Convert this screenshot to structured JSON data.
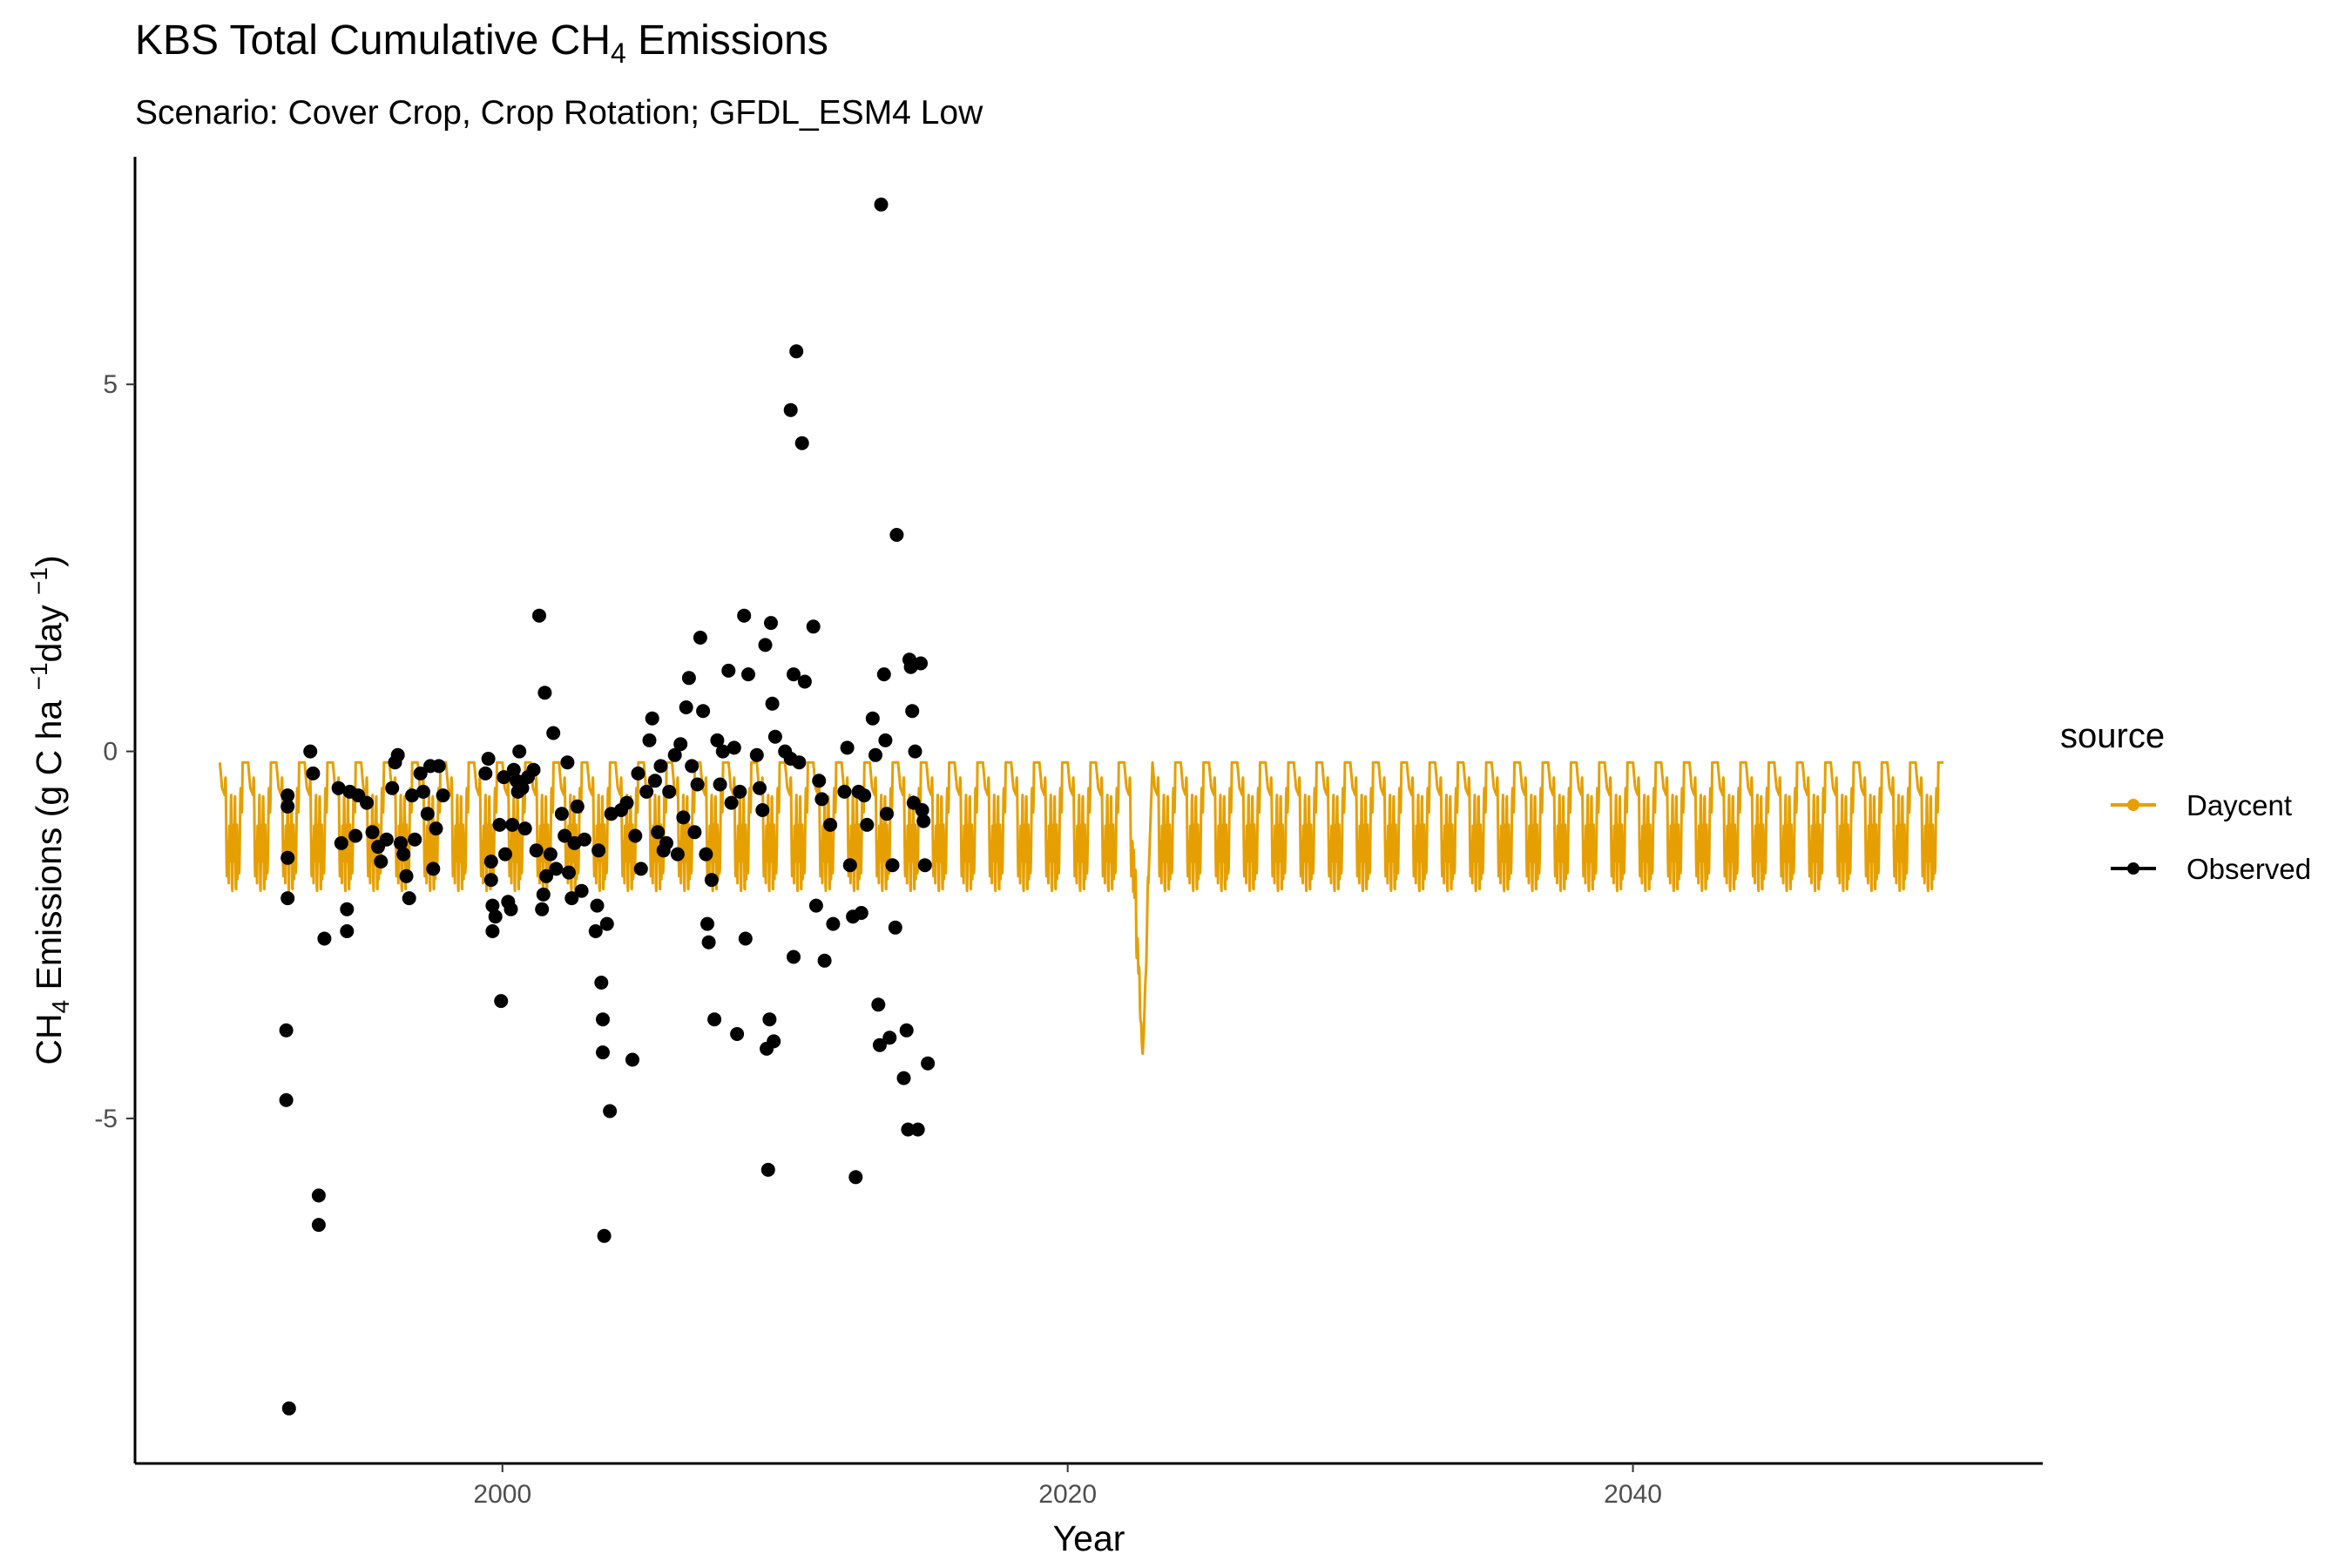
{
  "chart_data": {
    "type": "line",
    "title": {
      "prefix": "KBS Total Cumulative CH",
      "sub": "4",
      "suffix": " Emissions"
    },
    "subtitle": "Scenario: Cover Crop, Crop Rotation; GFDL_ESM4 Low",
    "xlabel": "Year",
    "ylabel": {
      "part1": "CH",
      "sub": "4",
      "part2": " Emissions (g C ha ",
      "sup1": "−1",
      "part3": "day ",
      "sup2": "−1",
      "part4": ")"
    },
    "xlim": [
      1987,
      2054.5
    ],
    "ylim": [
      -9.7,
      8.1
    ],
    "x_ticks": [
      2000,
      2020,
      2040
    ],
    "y_ticks": [
      5,
      0,
      -5
    ],
    "y_tick_labels": [
      "5",
      "0",
      "-5"
    ],
    "grid": false,
    "legend": {
      "title": "source",
      "position": "right",
      "entries": [
        "Daycent",
        "Observed"
      ]
    },
    "series": [
      {
        "name": "Daycent",
        "type": "line",
        "color": "#E69F00",
        "description_of_shape": "seasonal oscillation each year between about -0.15 (winter) and about -1.9 (summer), 1990 to 2051; one deep dip to about -4.15 in 2022",
        "x_range": [
          1990.0,
          2051.0
        ],
        "seasonal_high": -0.15,
        "seasonal_low": -1.9,
        "anomaly": {
          "x": 2022.65,
          "y": -4.15
        }
      },
      {
        "name": "Observed",
        "type": "scatter",
        "color": "#000000",
        "points": [
          [
            1992.4,
            -0.6
          ],
          [
            1992.4,
            -0.75
          ],
          [
            1992.4,
            -1.45
          ],
          [
            1992.4,
            -2.0
          ],
          [
            1992.35,
            -3.8
          ],
          [
            1992.35,
            -4.75
          ],
          [
            1992.45,
            -8.95
          ],
          [
            1993.2,
            0.0
          ],
          [
            1993.3,
            -0.3
          ],
          [
            1993.5,
            -6.05
          ],
          [
            1993.5,
            -6.45
          ],
          [
            1993.7,
            -2.55
          ],
          [
            1994.2,
            -0.5
          ],
          [
            1994.3,
            -1.25
          ],
          [
            1994.5,
            -2.15
          ],
          [
            1994.5,
            -2.45
          ],
          [
            1994.6,
            -0.55
          ],
          [
            1994.8,
            -1.15
          ],
          [
            1994.9,
            -0.6
          ],
          [
            1995.2,
            -0.7
          ],
          [
            1995.4,
            -1.1
          ],
          [
            1995.6,
            -1.3
          ],
          [
            1995.7,
            -1.5
          ],
          [
            1995.9,
            -1.2
          ],
          [
            1996.1,
            -0.5
          ],
          [
            1996.2,
            -0.15
          ],
          [
            1996.3,
            -0.05
          ],
          [
            1996.4,
            -1.25
          ],
          [
            1996.5,
            -1.4
          ],
          [
            1996.6,
            -1.7
          ],
          [
            1996.7,
            -2.0
          ],
          [
            1996.8,
            -0.6
          ],
          [
            1996.9,
            -1.2
          ],
          [
            1997.1,
            -0.3
          ],
          [
            1997.2,
            -0.55
          ],
          [
            1997.35,
            -0.85
          ],
          [
            1997.45,
            -0.2
          ],
          [
            1997.55,
            -1.6
          ],
          [
            1997.65,
            -1.05
          ],
          [
            1997.75,
            -0.2
          ],
          [
            1997.9,
            -0.6
          ],
          [
            1999.4,
            -0.3
          ],
          [
            1999.5,
            -0.1
          ],
          [
            1999.6,
            -1.5
          ],
          [
            1999.6,
            -1.75
          ],
          [
            1999.65,
            -2.1
          ],
          [
            1999.65,
            -2.45
          ],
          [
            1999.75,
            -2.25
          ],
          [
            1999.9,
            -1.0
          ],
          [
            1999.95,
            -3.4
          ],
          [
            2000.05,
            -0.35
          ],
          [
            2000.1,
            -1.4
          ],
          [
            2000.2,
            -2.05
          ],
          [
            2000.3,
            -2.15
          ],
          [
            2000.35,
            -1.0
          ],
          [
            2000.4,
            -0.25
          ],
          [
            2000.5,
            -0.4
          ],
          [
            2000.55,
            -0.55
          ],
          [
            2000.6,
            0.0
          ],
          [
            2000.7,
            -0.5
          ],
          [
            2000.8,
            -1.05
          ],
          [
            2000.9,
            -0.35
          ],
          [
            2001.1,
            -0.25
          ],
          [
            2001.2,
            -1.35
          ],
          [
            2001.3,
            1.85
          ],
          [
            2001.4,
            -2.15
          ],
          [
            2001.45,
            -1.95
          ],
          [
            2001.5,
            0.8
          ],
          [
            2001.55,
            -1.7
          ],
          [
            2001.7,
            -1.4
          ],
          [
            2001.8,
            0.25
          ],
          [
            2001.9,
            -1.6
          ],
          [
            2002.1,
            -0.85
          ],
          [
            2002.2,
            -1.15
          ],
          [
            2002.3,
            -0.15
          ],
          [
            2002.35,
            -1.65
          ],
          [
            2002.45,
            -2.0
          ],
          [
            2002.55,
            -1.25
          ],
          [
            2002.65,
            -0.75
          ],
          [
            2002.8,
            -1.9
          ],
          [
            2002.9,
            -1.2
          ],
          [
            2003.3,
            -2.45
          ],
          [
            2003.35,
            -2.1
          ],
          [
            2003.4,
            -1.35
          ],
          [
            2003.5,
            -3.15
          ],
          [
            2003.55,
            -3.65
          ],
          [
            2003.55,
            -4.1
          ],
          [
            2003.6,
            -6.6
          ],
          [
            2003.7,
            -2.35
          ],
          [
            2003.8,
            -4.9
          ],
          [
            2003.85,
            -0.85
          ],
          [
            2004.2,
            -0.8
          ],
          [
            2004.4,
            -0.7
          ],
          [
            2004.6,
            -4.2
          ],
          [
            2004.7,
            -1.15
          ],
          [
            2004.8,
            -0.3
          ],
          [
            2004.9,
            -1.6
          ],
          [
            2005.1,
            -0.55
          ],
          [
            2005.2,
            0.15
          ],
          [
            2005.3,
            0.45
          ],
          [
            2005.4,
            -0.4
          ],
          [
            2005.5,
            -1.1
          ],
          [
            2005.6,
            -0.2
          ],
          [
            2005.7,
            -1.35
          ],
          [
            2005.8,
            -1.25
          ],
          [
            2005.9,
            -0.55
          ],
          [
            2006.1,
            -0.05
          ],
          [
            2006.2,
            -1.4
          ],
          [
            2006.3,
            0.1
          ],
          [
            2006.4,
            -0.9
          ],
          [
            2006.5,
            0.6
          ],
          [
            2006.6,
            1.0
          ],
          [
            2006.7,
            -0.2
          ],
          [
            2006.8,
            -1.1
          ],
          [
            2006.9,
            -0.45
          ],
          [
            2007.0,
            1.55
          ],
          [
            2007.1,
            0.55
          ],
          [
            2007.2,
            -1.4
          ],
          [
            2007.25,
            -2.35
          ],
          [
            2007.3,
            -2.6
          ],
          [
            2007.4,
            -1.75
          ],
          [
            2007.5,
            -3.65
          ],
          [
            2007.6,
            0.15
          ],
          [
            2007.7,
            -0.45
          ],
          [
            2007.8,
            0.0
          ],
          [
            2008.0,
            1.1
          ],
          [
            2008.1,
            -0.7
          ],
          [
            2008.2,
            0.05
          ],
          [
            2008.3,
            -3.85
          ],
          [
            2008.4,
            -0.55
          ],
          [
            2008.55,
            1.85
          ],
          [
            2008.6,
            -2.55
          ],
          [
            2008.7,
            1.05
          ],
          [
            2009.0,
            -0.05
          ],
          [
            2009.1,
            -0.5
          ],
          [
            2009.2,
            -0.8
          ],
          [
            2009.3,
            1.45
          ],
          [
            2009.35,
            -4.05
          ],
          [
            2009.4,
            -5.7
          ],
          [
            2009.45,
            -3.65
          ],
          [
            2009.5,
            1.75
          ],
          [
            2009.55,
            0.65
          ],
          [
            2009.6,
            -3.95
          ],
          [
            2009.65,
            0.2
          ],
          [
            2010.0,
            0.0
          ],
          [
            2010.2,
            4.65
          ],
          [
            2010.2,
            -0.1
          ],
          [
            2010.3,
            1.05
          ],
          [
            2010.3,
            -2.8
          ],
          [
            2010.4,
            5.45
          ],
          [
            2010.5,
            -0.15
          ],
          [
            2010.6,
            4.2
          ],
          [
            2010.7,
            0.95
          ],
          [
            2011.0,
            1.7
          ],
          [
            2011.1,
            -2.1
          ],
          [
            2011.2,
            -0.4
          ],
          [
            2011.3,
            -0.65
          ],
          [
            2011.4,
            -2.85
          ],
          [
            2011.6,
            -1.0
          ],
          [
            2011.7,
            -2.35
          ],
          [
            2012.1,
            -0.55
          ],
          [
            2012.2,
            0.05
          ],
          [
            2012.3,
            -1.55
          ],
          [
            2012.4,
            -2.25
          ],
          [
            2012.5,
            -5.8
          ],
          [
            2012.6,
            -0.55
          ],
          [
            2012.7,
            -2.2
          ],
          [
            2012.8,
            -0.6
          ],
          [
            2012.9,
            -1.0
          ],
          [
            2013.1,
            0.45
          ],
          [
            2013.2,
            -0.05
          ],
          [
            2013.3,
            -3.45
          ],
          [
            2013.35,
            -4.0
          ],
          [
            2013.4,
            7.45
          ],
          [
            2013.5,
            1.05
          ],
          [
            2013.55,
            0.15
          ],
          [
            2013.6,
            -0.85
          ],
          [
            2013.7,
            -3.9
          ],
          [
            2013.8,
            -1.55
          ],
          [
            2013.9,
            -2.4
          ],
          [
            2013.95,
            2.95
          ],
          [
            2014.2,
            -4.45
          ],
          [
            2014.3,
            -3.8
          ],
          [
            2014.35,
            -5.15
          ],
          [
            2014.4,
            1.25
          ],
          [
            2014.45,
            1.15
          ],
          [
            2014.5,
            0.55
          ],
          [
            2014.55,
            -0.7
          ],
          [
            2014.6,
            0.0
          ],
          [
            2014.7,
            -5.15
          ],
          [
            2014.8,
            1.2
          ],
          [
            2014.85,
            -0.8
          ],
          [
            2014.9,
            -0.95
          ],
          [
            2014.95,
            -1.55
          ],
          [
            2015.05,
            -4.25
          ]
        ]
      }
    ]
  }
}
